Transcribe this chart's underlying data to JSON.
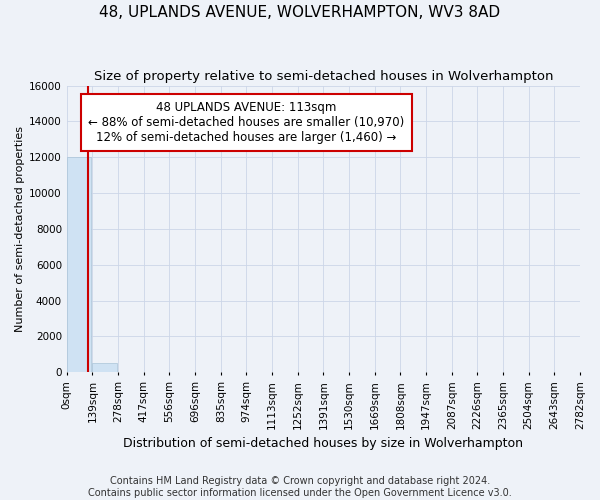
{
  "title": "48, UPLANDS AVENUE, WOLVERHAMPTON, WV3 8AD",
  "subtitle": "Size of property relative to semi-detached houses in Wolverhampton",
  "xlabel": "Distribution of semi-detached houses by size in Wolverhampton",
  "ylabel": "Number of semi-detached properties",
  "footer_line1": "Contains HM Land Registry data © Crown copyright and database right 2024.",
  "footer_line2": "Contains public sector information licensed under the Open Government Licence v3.0.",
  "annotation_title": "48 UPLANDS AVENUE: 113sqm",
  "annotation_line1": "← 88% of semi-detached houses are smaller (10,970)",
  "annotation_line2": "12% of semi-detached houses are larger (1,460) →",
  "property_sqm": 113,
  "bin_width": 139,
  "bins": [
    0,
    139,
    278,
    417,
    556,
    696,
    835,
    974,
    1113,
    1252,
    1391,
    1530,
    1669,
    1808,
    1947,
    2087,
    2226,
    2365,
    2504,
    2643,
    2782
  ],
  "bin_labels": [
    "0sqm",
    "139sqm",
    "278sqm",
    "417sqm",
    "556sqm",
    "696sqm",
    "835sqm",
    "974sqm",
    "1113sqm",
    "1252sqm",
    "1391sqm",
    "1530sqm",
    "1669sqm",
    "1808sqm",
    "1947sqm",
    "2087sqm",
    "2226sqm",
    "2365sqm",
    "2504sqm",
    "2643sqm",
    "2782sqm"
  ],
  "bar_values": [
    12000,
    500,
    0,
    0,
    0,
    0,
    0,
    0,
    0,
    0,
    0,
    0,
    0,
    0,
    0,
    0,
    0,
    0,
    0,
    0
  ],
  "bar_color": "#cfe2f3",
  "bar_edge_color": "#aac4d8",
  "property_line_color": "#cc0000",
  "annotation_box_color": "#cc0000",
  "annotation_bg_color": "#ffffff",
  "grid_color": "#ccd6e8",
  "ylim": [
    0,
    16000
  ],
  "yticks": [
    0,
    2000,
    4000,
    6000,
    8000,
    10000,
    12000,
    14000,
    16000
  ],
  "background_color": "#eef2f8",
  "title_fontsize": 11,
  "subtitle_fontsize": 9.5,
  "xlabel_fontsize": 9,
  "ylabel_fontsize": 8,
  "tick_fontsize": 7.5,
  "annotation_fontsize": 8.5,
  "footer_fontsize": 7
}
